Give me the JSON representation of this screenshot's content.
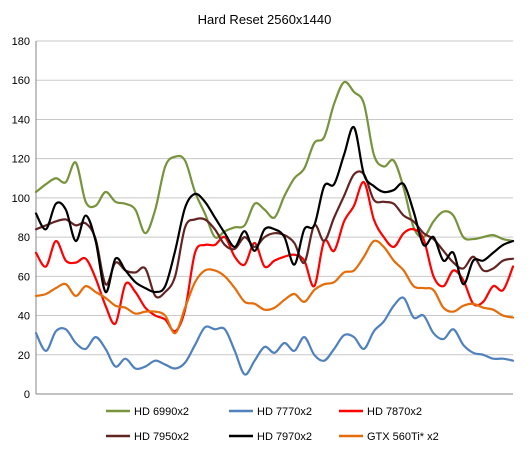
{
  "chart_data": {
    "type": "line",
    "title": "Hard Reset 2560x1440",
    "xlabel": "",
    "ylabel": "",
    "ylim": [
      0,
      180
    ],
    "yticks": [
      0,
      20,
      40,
      60,
      80,
      100,
      120,
      140,
      160,
      180
    ],
    "grid": true,
    "legend_position": "bottom",
    "x": [
      0,
      1,
      2,
      3,
      4,
      5,
      6,
      7,
      8,
      9,
      10,
      11,
      12,
      13,
      14,
      15,
      16,
      17,
      18,
      19,
      20,
      21,
      22,
      23,
      24,
      25,
      26,
      27,
      28,
      29,
      30,
      31,
      32,
      33,
      34,
      35,
      36,
      37,
      38,
      39,
      40,
      41,
      42,
      43,
      44,
      45,
      46,
      47,
      48
    ],
    "series": [
      {
        "name": "HD 6990x2",
        "color": "#77933C",
        "values": [
          103,
          107,
          110,
          108,
          118,
          98,
          96,
          103,
          98,
          97,
          94,
          82,
          94,
          116,
          121,
          119,
          103,
          92,
          80,
          83,
          85,
          86,
          97,
          94,
          90,
          101,
          110,
          115,
          128,
          131,
          148,
          159,
          154,
          148,
          122,
          116,
          119,
          105,
          85,
          80,
          88,
          93,
          91,
          80,
          79,
          80,
          81,
          79,
          78
        ]
      },
      {
        "name": "HD 7770x2",
        "color": "#4F81BD",
        "values": [
          31,
          22,
          32,
          33,
          26,
          23,
          29,
          23,
          14,
          18,
          13,
          14,
          17,
          15,
          13,
          16,
          25,
          34,
          33,
          33,
          22,
          10,
          17,
          24,
          21,
          26,
          22,
          29,
          20,
          17,
          23,
          30,
          29,
          23,
          32,
          37,
          45,
          49,
          39,
          40,
          31,
          28,
          33,
          25,
          21,
          20,
          18,
          18,
          17
        ]
      },
      {
        "name": "HD 7870x2",
        "color": "#FF0000",
        "values": [
          72,
          65,
          78,
          68,
          67,
          69,
          59,
          45,
          36,
          56,
          52,
          44,
          40,
          38,
          32,
          43,
          72,
          76,
          76,
          80,
          70,
          66,
          77,
          65,
          68,
          70,
          71,
          68,
          55,
          78,
          73,
          88,
          96,
          108,
          89,
          80,
          75,
          82,
          84,
          79,
          60,
          55,
          63,
          58,
          46,
          47,
          55,
          53,
          65
        ]
      },
      {
        "name": "HD 7950x2",
        "color": "#632523",
        "values": [
          84,
          86,
          88,
          89,
          86,
          87,
          79,
          56,
          67,
          63,
          62,
          64,
          50,
          52,
          60,
          85,
          89,
          89,
          84,
          76,
          74,
          80,
          75,
          80,
          82,
          81,
          77,
          67,
          86,
          78,
          90,
          101,
          112,
          112,
          99,
          98,
          97,
          91,
          88,
          82,
          79,
          73,
          67,
          64,
          70,
          63,
          64,
          68,
          69
        ]
      },
      {
        "name": "HD 7970x2",
        "color": "#000000",
        "values": [
          92,
          84,
          97,
          94,
          78,
          91,
          78,
          52,
          69,
          63,
          57,
          54,
          52,
          55,
          73,
          95,
          102,
          98,
          90,
          82,
          75,
          83,
          73,
          84,
          84,
          80,
          66,
          84,
          86,
          106,
          107,
          122,
          136,
          112,
          106,
          103,
          104,
          107,
          93,
          76,
          80,
          68,
          72,
          56,
          68,
          68,
          72,
          76,
          78
        ]
      },
      {
        "name": "GTX 560Ti* x2",
        "color": "#E46C0A",
        "values": [
          50,
          51,
          54,
          56,
          50,
          55,
          52,
          49,
          45,
          44,
          41,
          42,
          42,
          40,
          31,
          44,
          57,
          63,
          63,
          60,
          54,
          47,
          46,
          43,
          44,
          48,
          51,
          47,
          53,
          56,
          57,
          62,
          63,
          70,
          78,
          75,
          68,
          63,
          55,
          54,
          53,
          44,
          42,
          45,
          46,
          44,
          43,
          40,
          39
        ]
      }
    ]
  }
}
